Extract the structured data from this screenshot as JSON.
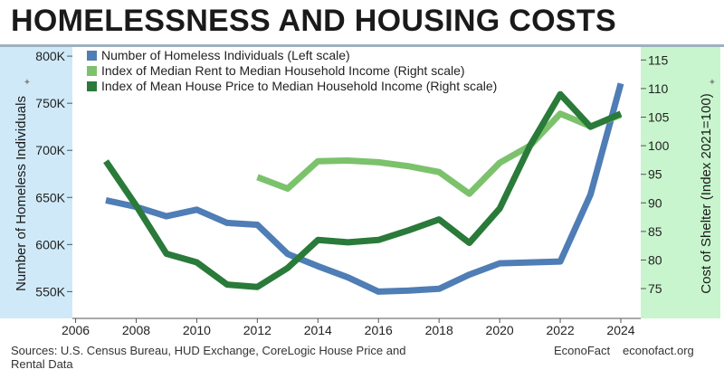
{
  "header": {
    "title": "HOMELESSNESS AND HOUSING COSTS"
  },
  "footer": {
    "source": "Sources: U.S. Census Bureau, HUD Exchange, CoreLogic House Price and Rental Data",
    "brand": "EconoFact",
    "site": "econofact.org"
  },
  "colors": {
    "left_panel": "#cfe9f8",
    "right_panel": "#c8f5cd",
    "homeless": "#4f7db5",
    "rent": "#7cc26c",
    "house": "#2a7a3a"
  },
  "chart_data": {
    "type": "line",
    "x": [
      2007,
      2008,
      2009,
      2010,
      2011,
      2012,
      2013,
      2014,
      2015,
      2016,
      2017,
      2018,
      2019,
      2020,
      2021,
      2022,
      2023,
      2024
    ],
    "xticks": [
      "2006",
      "2008",
      "2010",
      "2012",
      "2014",
      "2016",
      "2018",
      "2020",
      "2022",
      "2024"
    ],
    "xlim": [
      2006,
      2024.4
    ],
    "ylabel_left": "Number of Homeless Individuals",
    "ylabel_right": "Cost of Shelter (Index 2021=100)",
    "ylim_left": [
      535,
      802
    ],
    "yticks_left": [
      "800K",
      "750K",
      "700K",
      "650K",
      "600K",
      "550K"
    ],
    "yticks_left_values": [
      800,
      750,
      700,
      650,
      600,
      550
    ],
    "ylim_right": [
      72,
      116
    ],
    "yticks_right": [
      115,
      110,
      105,
      100,
      95,
      90,
      85,
      80,
      75
    ],
    "series": [
      {
        "name": "Number of Homeless Individuals (Left scale)",
        "axis": "left",
        "color": "#4f7db5",
        "x": [
          2007,
          2008,
          2009,
          2010,
          2011,
          2012,
          2013,
          2014,
          2015,
          2016,
          2017,
          2018,
          2019,
          2020,
          2021,
          2022,
          2023,
          2024
        ],
        "values": [
          647,
          640,
          630,
          637,
          623,
          621,
          590,
          577,
          565,
          550,
          551,
          553,
          568,
          580,
          581,
          582,
          653,
          771
        ]
      },
      {
        "name": "Index of Median Rent to Median Household Income (Right scale)",
        "axis": "right",
        "color": "#7cc26c",
        "x": [
          2012,
          2013,
          2014,
          2015,
          2016,
          2017,
          2018,
          2019,
          2020,
          2021,
          2022,
          2023,
          2024
        ],
        "values": [
          94.5,
          92.5,
          97.3,
          97.4,
          97.1,
          96.4,
          95.4,
          91.6,
          97.0,
          100,
          105.6,
          103.4,
          105.4
        ]
      },
      {
        "name": "Index of Mean House Price to Median Household Income (Right scale)",
        "axis": "right",
        "color": "#2a7a3a",
        "x": [
          2007,
          2008,
          2009,
          2010,
          2011,
          2012,
          2013,
          2014,
          2015,
          2016,
          2017,
          2018,
          2019,
          2020,
          2021,
          2022,
          2023,
          2024
        ],
        "values": [
          97.3,
          89.5,
          81.1,
          79.6,
          75.7,
          75.3,
          78.6,
          83.5,
          83.1,
          83.5,
          85.2,
          87.1,
          83.0,
          89.0,
          100,
          109.0,
          103.3,
          105.6
        ]
      }
    ]
  }
}
